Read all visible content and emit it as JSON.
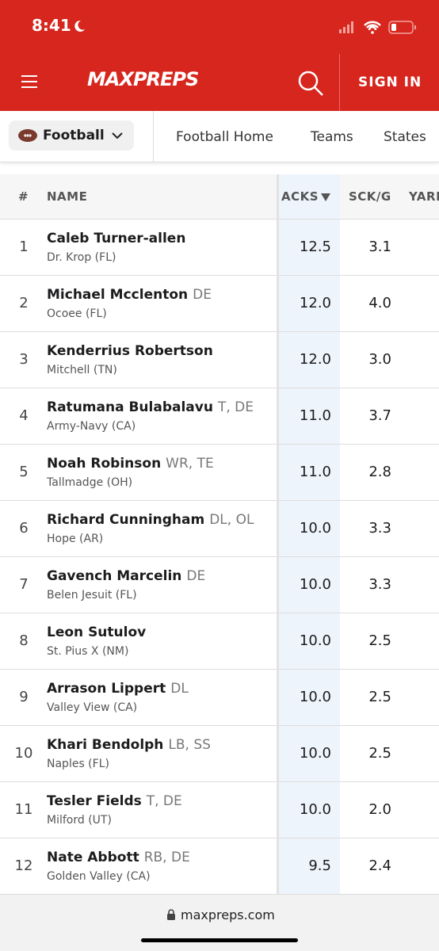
{
  "status_bar": {
    "time": "8:41"
  },
  "header": {
    "logo": "MAXPREPS",
    "sign_in": "SIGN IN"
  },
  "nav": {
    "sport": "Football",
    "links": [
      "Football Home",
      "Teams",
      "States"
    ]
  },
  "table": {
    "columns": [
      "#",
      "NAME",
      "ACKS",
      "SCK/G",
      "YARDS"
    ],
    "rows": [
      {
        "rank": "1",
        "name": "Caleb Turner-allen",
        "position": "",
        "school": "Dr. Krop (FL)",
        "sacks": "12.5",
        "sacks_per_game": "3.1"
      },
      {
        "rank": "2",
        "name": "Michael Mcclenton",
        "position": "DE",
        "school": "Ocoee (FL)",
        "sacks": "12.0",
        "sacks_per_game": "4.0"
      },
      {
        "rank": "3",
        "name": "Kenderrius Robertson",
        "position": "",
        "school": "Mitchell (TN)",
        "sacks": "12.0",
        "sacks_per_game": "3.0"
      },
      {
        "rank": "4",
        "name": "Ratumana Bulabalavu",
        "position": "T, DE",
        "school": "Army-Navy (CA)",
        "sacks": "11.0",
        "sacks_per_game": "3.7"
      },
      {
        "rank": "5",
        "name": "Noah Robinson",
        "position": "WR, TE",
        "school": "Tallmadge (OH)",
        "sacks": "11.0",
        "sacks_per_game": "2.8"
      },
      {
        "rank": "6",
        "name": "Richard Cunningham",
        "position": "DL, OL",
        "school": "Hope (AR)",
        "sacks": "10.0",
        "sacks_per_game": "3.3"
      },
      {
        "rank": "7",
        "name": "Gavench Marcelin",
        "position": "DE",
        "school": "Belen Jesuit (FL)",
        "sacks": "10.0",
        "sacks_per_game": "3.3"
      },
      {
        "rank": "8",
        "name": "Leon Sutulov",
        "position": "",
        "school": "St. Pius X (NM)",
        "sacks": "10.0",
        "sacks_per_game": "2.5"
      },
      {
        "rank": "9",
        "name": "Arrason Lippert",
        "position": "DL",
        "school": "Valley View (CA)",
        "sacks": "10.0",
        "sacks_per_game": "2.5"
      },
      {
        "rank": "10",
        "name": "Khari Bendolph",
        "position": "LB, SS",
        "school": "Naples (FL)",
        "sacks": "10.0",
        "sacks_per_game": "2.5"
      },
      {
        "rank": "11",
        "name": "Tesler Fields",
        "position": "T, DE",
        "school": "Milford (UT)",
        "sacks": "10.0",
        "sacks_per_game": "2.0"
      },
      {
        "rank": "12",
        "name": "Nate Abbott",
        "position": "RB, DE",
        "school": "Golden Valley (CA)",
        "sacks": "9.5",
        "sacks_per_game": "2.4"
      }
    ]
  },
  "browser": {
    "url": "maxpreps.com"
  }
}
